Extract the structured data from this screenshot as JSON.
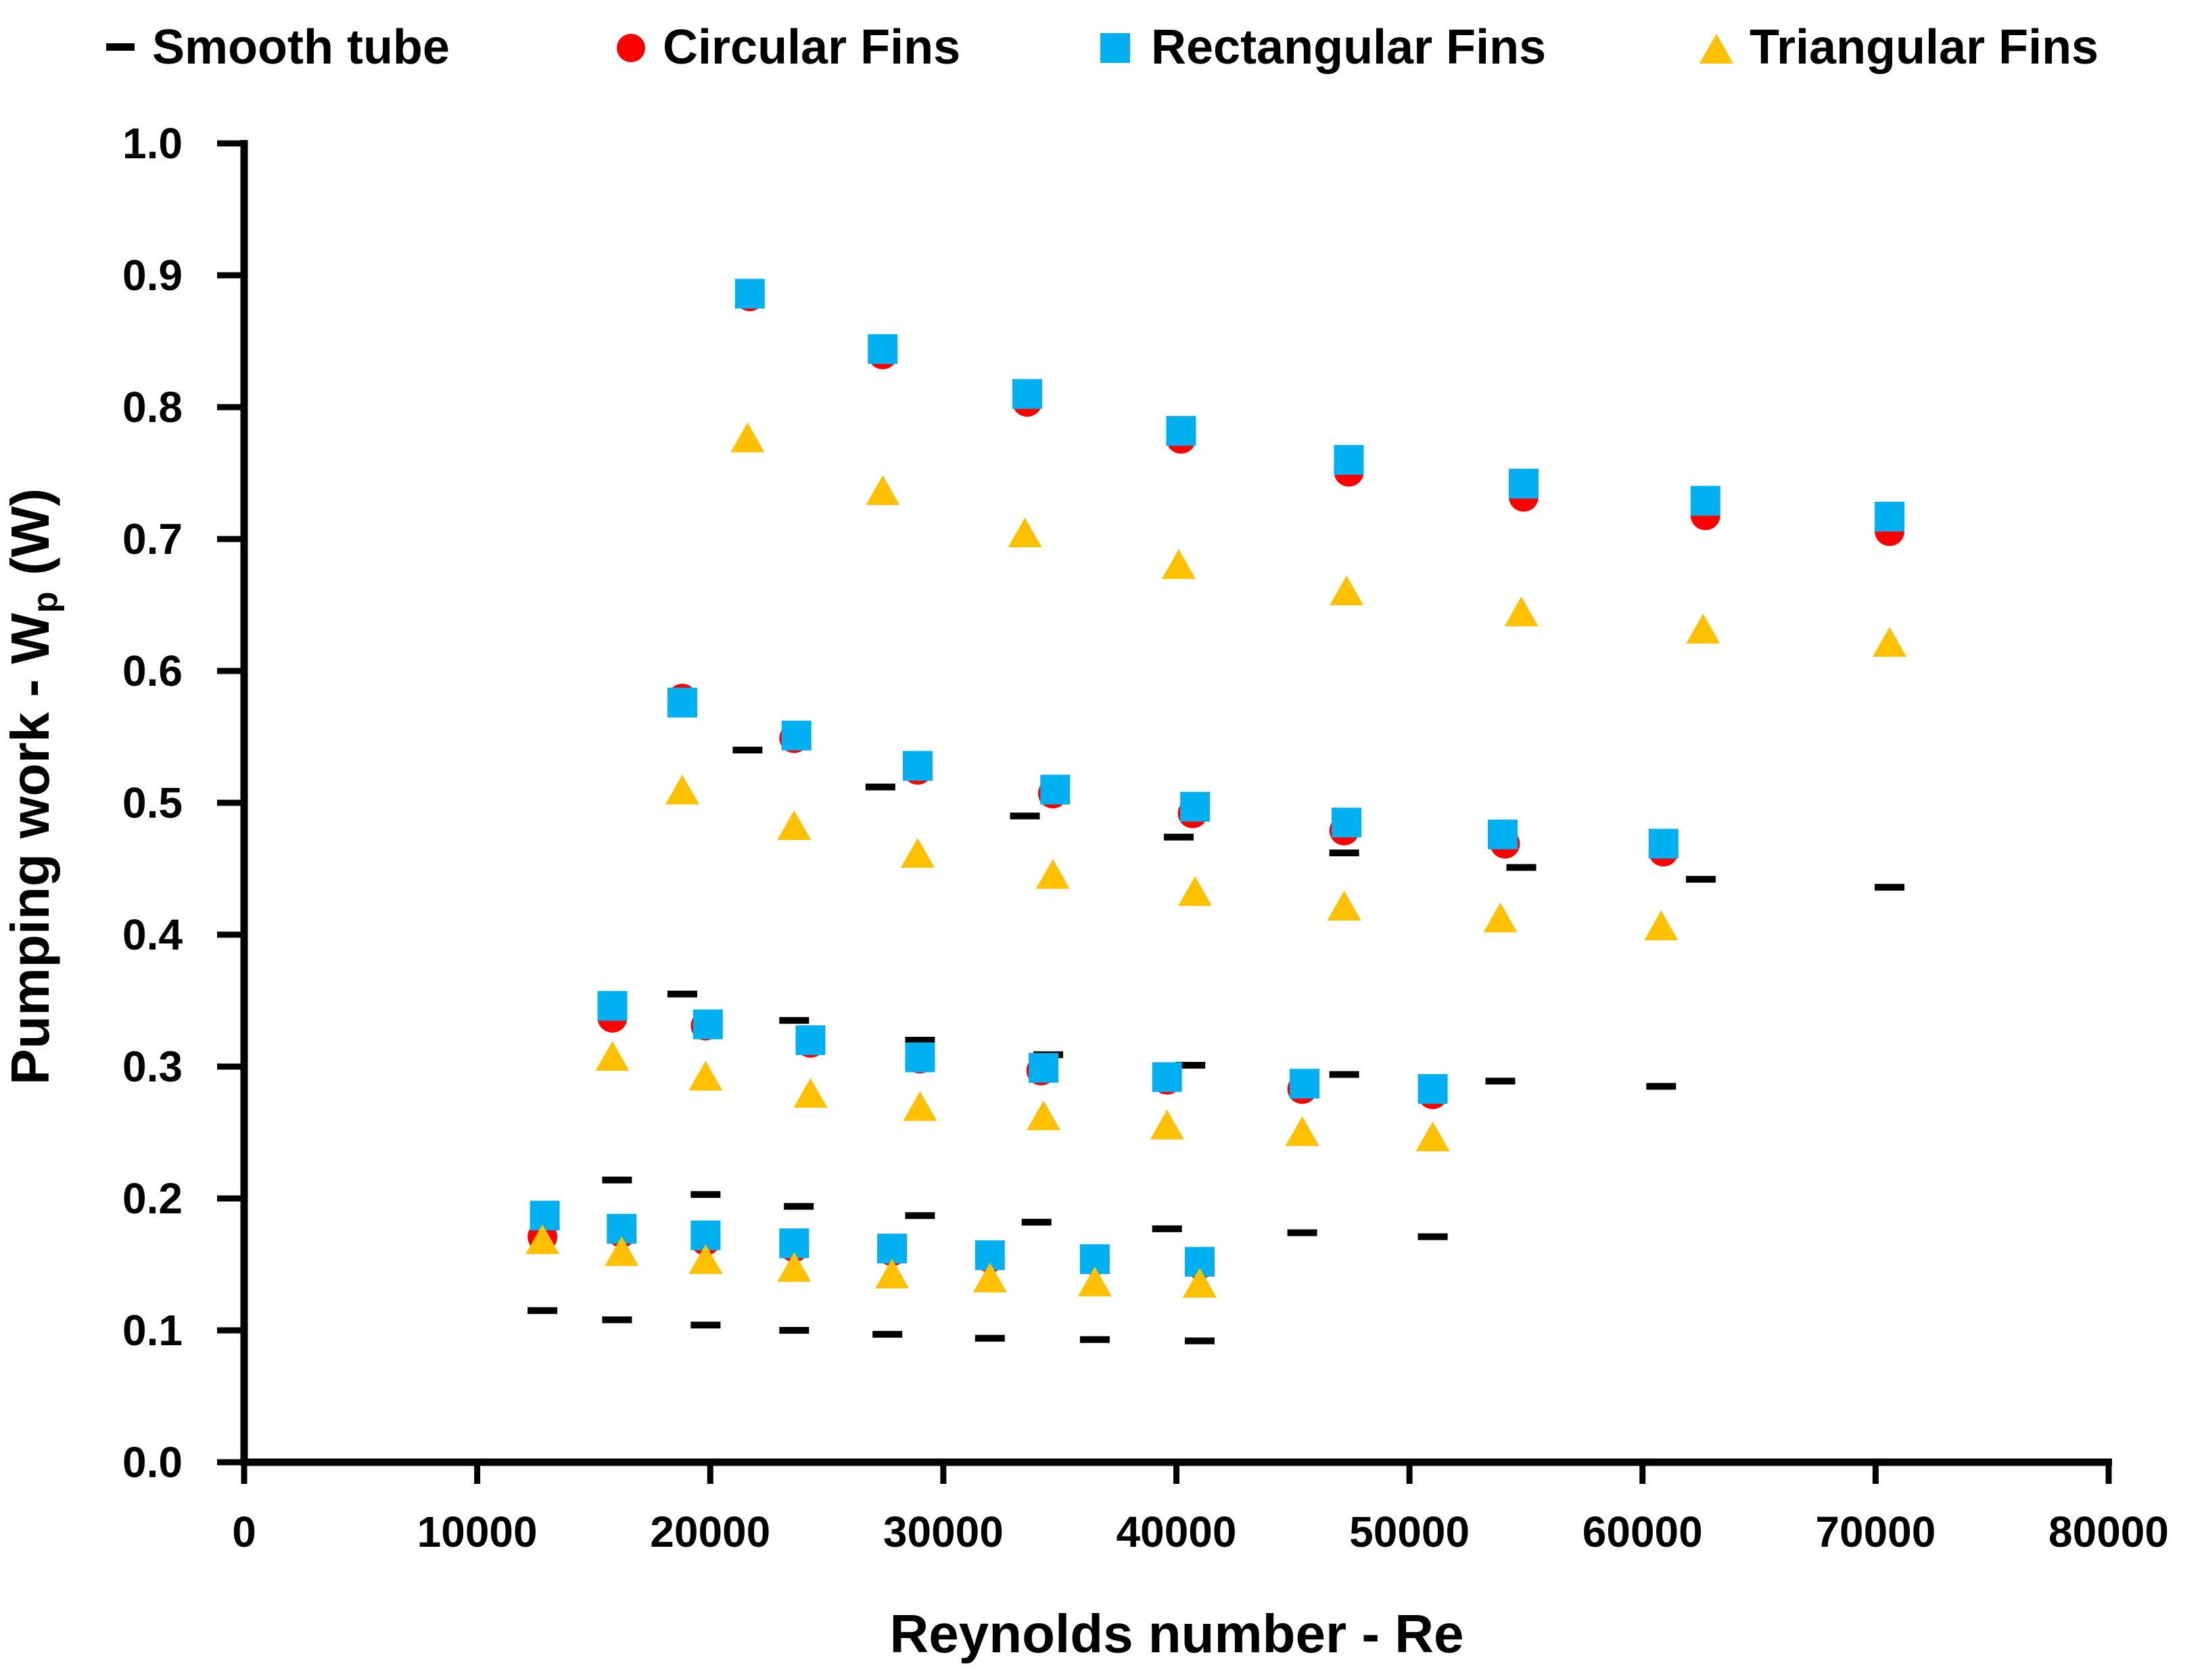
{
  "chart_data": {
    "type": "scatter",
    "title": "",
    "xlabel": "Reynolds number - Re",
    "ylabel": {
      "main": "Pumping work - W",
      "subscript": "p",
      "unit": "(W)"
    },
    "xlim": [
      0,
      80000
    ],
    "ylim": [
      0,
      1.0
    ],
    "x_ticks": [
      "0",
      "10000",
      "20000",
      "30000",
      "40000",
      "50000",
      "60000",
      "70000",
      "80000"
    ],
    "y_ticks": [
      "0.0",
      "0.1",
      "0.2",
      "0.3",
      "0.4",
      "0.5",
      "0.6",
      "0.7",
      "0.8",
      "0.9",
      "1.0"
    ],
    "grid": false,
    "legend_position": "top",
    "series": [
      {
        "name": "Smooth tube",
        "marker": "dash",
        "color": "#000000",
        "points": [
          [
            12800,
            0.115
          ],
          [
            16000,
            0.108
          ],
          [
            19800,
            0.104
          ],
          [
            23600,
            0.1
          ],
          [
            27600,
            0.097
          ],
          [
            32000,
            0.094
          ],
          [
            36500,
            0.093
          ],
          [
            41000,
            0.092
          ],
          [
            16000,
            0.214
          ],
          [
            19800,
            0.203
          ],
          [
            23800,
            0.194
          ],
          [
            29000,
            0.187
          ],
          [
            34000,
            0.182
          ],
          [
            39600,
            0.177
          ],
          [
            45400,
            0.174
          ],
          [
            51000,
            0.171
          ],
          [
            18800,
            0.355
          ],
          [
            23600,
            0.335
          ],
          [
            29000,
            0.32
          ],
          [
            34500,
            0.309
          ],
          [
            40600,
            0.301
          ],
          [
            47200,
            0.294
          ],
          [
            53900,
            0.289
          ],
          [
            60800,
            0.285
          ],
          [
            21600,
            0.54
          ],
          [
            27300,
            0.512
          ],
          [
            33500,
            0.49
          ],
          [
            40100,
            0.474
          ],
          [
            47200,
            0.462
          ],
          [
            54800,
            0.451
          ],
          [
            62500,
            0.442
          ],
          [
            70600,
            0.436
          ]
        ]
      },
      {
        "name": "Circular Fins",
        "marker": "circle",
        "color": "#ff0000",
        "points": [
          [
            12800,
            0.171
          ],
          [
            16200,
            0.174
          ],
          [
            19800,
            0.168
          ],
          [
            23600,
            0.163
          ],
          [
            27800,
            0.16
          ],
          [
            32000,
            0.155
          ],
          [
            36500,
            0.153
          ],
          [
            41000,
            0.15
          ],
          [
            15800,
            0.337
          ],
          [
            19800,
            0.331
          ],
          [
            24300,
            0.318
          ],
          [
            29000,
            0.306
          ],
          [
            34200,
            0.297
          ],
          [
            39600,
            0.29
          ],
          [
            45400,
            0.283
          ],
          [
            51000,
            0.279
          ],
          [
            18800,
            0.579
          ],
          [
            23600,
            0.549
          ],
          [
            28900,
            0.525
          ],
          [
            34700,
            0.507
          ],
          [
            40700,
            0.492
          ],
          [
            47200,
            0.479
          ],
          [
            54100,
            0.469
          ],
          [
            60900,
            0.463
          ],
          [
            21700,
            0.884
          ],
          [
            27400,
            0.84
          ],
          [
            33600,
            0.804
          ],
          [
            40200,
            0.776
          ],
          [
            47400,
            0.751
          ],
          [
            54900,
            0.732
          ],
          [
            62700,
            0.718
          ],
          [
            70600,
            0.706
          ]
        ]
      },
      {
        "name": "Rectangular Fins",
        "marker": "square",
        "color": "#00b0f0",
        "points": [
          [
            12900,
            0.187
          ],
          [
            16200,
            0.177
          ],
          [
            19800,
            0.172
          ],
          [
            23600,
            0.166
          ],
          [
            27800,
            0.162
          ],
          [
            32000,
            0.157
          ],
          [
            36500,
            0.154
          ],
          [
            41000,
            0.152
          ],
          [
            15800,
            0.346
          ],
          [
            19900,
            0.332
          ],
          [
            24300,
            0.32
          ],
          [
            29000,
            0.307
          ],
          [
            34300,
            0.299
          ],
          [
            39600,
            0.292
          ],
          [
            45500,
            0.287
          ],
          [
            51000,
            0.283
          ],
          [
            18800,
            0.576
          ],
          [
            23700,
            0.551
          ],
          [
            28900,
            0.528
          ],
          [
            34800,
            0.51
          ],
          [
            40800,
            0.497
          ],
          [
            47300,
            0.485
          ],
          [
            54000,
            0.476
          ],
          [
            60900,
            0.469
          ],
          [
            21700,
            0.886
          ],
          [
            27400,
            0.844
          ],
          [
            33600,
            0.81
          ],
          [
            40200,
            0.782
          ],
          [
            47400,
            0.76
          ],
          [
            54900,
            0.742
          ],
          [
            62700,
            0.729
          ],
          [
            70600,
            0.717
          ]
        ]
      },
      {
        "name": "Triangular Fins",
        "marker": "triangle",
        "color": "#ffc000",
        "points": [
          [
            12800,
            0.167
          ],
          [
            16200,
            0.158
          ],
          [
            19800,
            0.152
          ],
          [
            23600,
            0.146
          ],
          [
            27800,
            0.141
          ],
          [
            32000,
            0.138
          ],
          [
            36500,
            0.135
          ],
          [
            41000,
            0.134
          ],
          [
            15800,
            0.306
          ],
          [
            19800,
            0.291
          ],
          [
            24300,
            0.278
          ],
          [
            29000,
            0.268
          ],
          [
            34300,
            0.261
          ],
          [
            39600,
            0.254
          ],
          [
            45400,
            0.249
          ],
          [
            51000,
            0.245
          ],
          [
            18800,
            0.508
          ],
          [
            23600,
            0.481
          ],
          [
            28900,
            0.46
          ],
          [
            34700,
            0.444
          ],
          [
            40800,
            0.431
          ],
          [
            47200,
            0.42
          ],
          [
            53900,
            0.411
          ],
          [
            60800,
            0.405
          ],
          [
            21600,
            0.775
          ],
          [
            27400,
            0.735
          ],
          [
            33500,
            0.703
          ],
          [
            40100,
            0.679
          ],
          [
            47300,
            0.659
          ],
          [
            54800,
            0.643
          ],
          [
            62600,
            0.63
          ],
          [
            70600,
            0.62
          ]
        ]
      }
    ]
  }
}
